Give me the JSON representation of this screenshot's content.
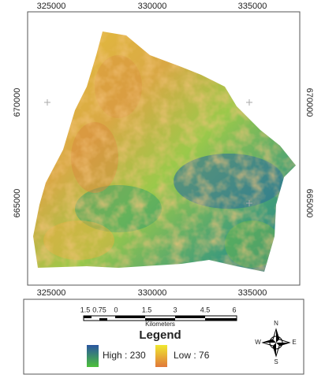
{
  "map": {
    "x_ticks": [
      "325000",
      "330000",
      "335000"
    ],
    "y_ticks": [
      "670000",
      "665000"
    ],
    "scale_labels": [
      "1.5",
      "0.75",
      "0",
      "1.5",
      "3",
      "4.5",
      "6"
    ],
    "scale_unit": "Kilometers",
    "legend": {
      "title": "Legend",
      "high": "High : 230",
      "low": "Low : 76"
    },
    "compass": {
      "n": "N",
      "e": "E",
      "s": "S",
      "w": "W"
    }
  }
}
